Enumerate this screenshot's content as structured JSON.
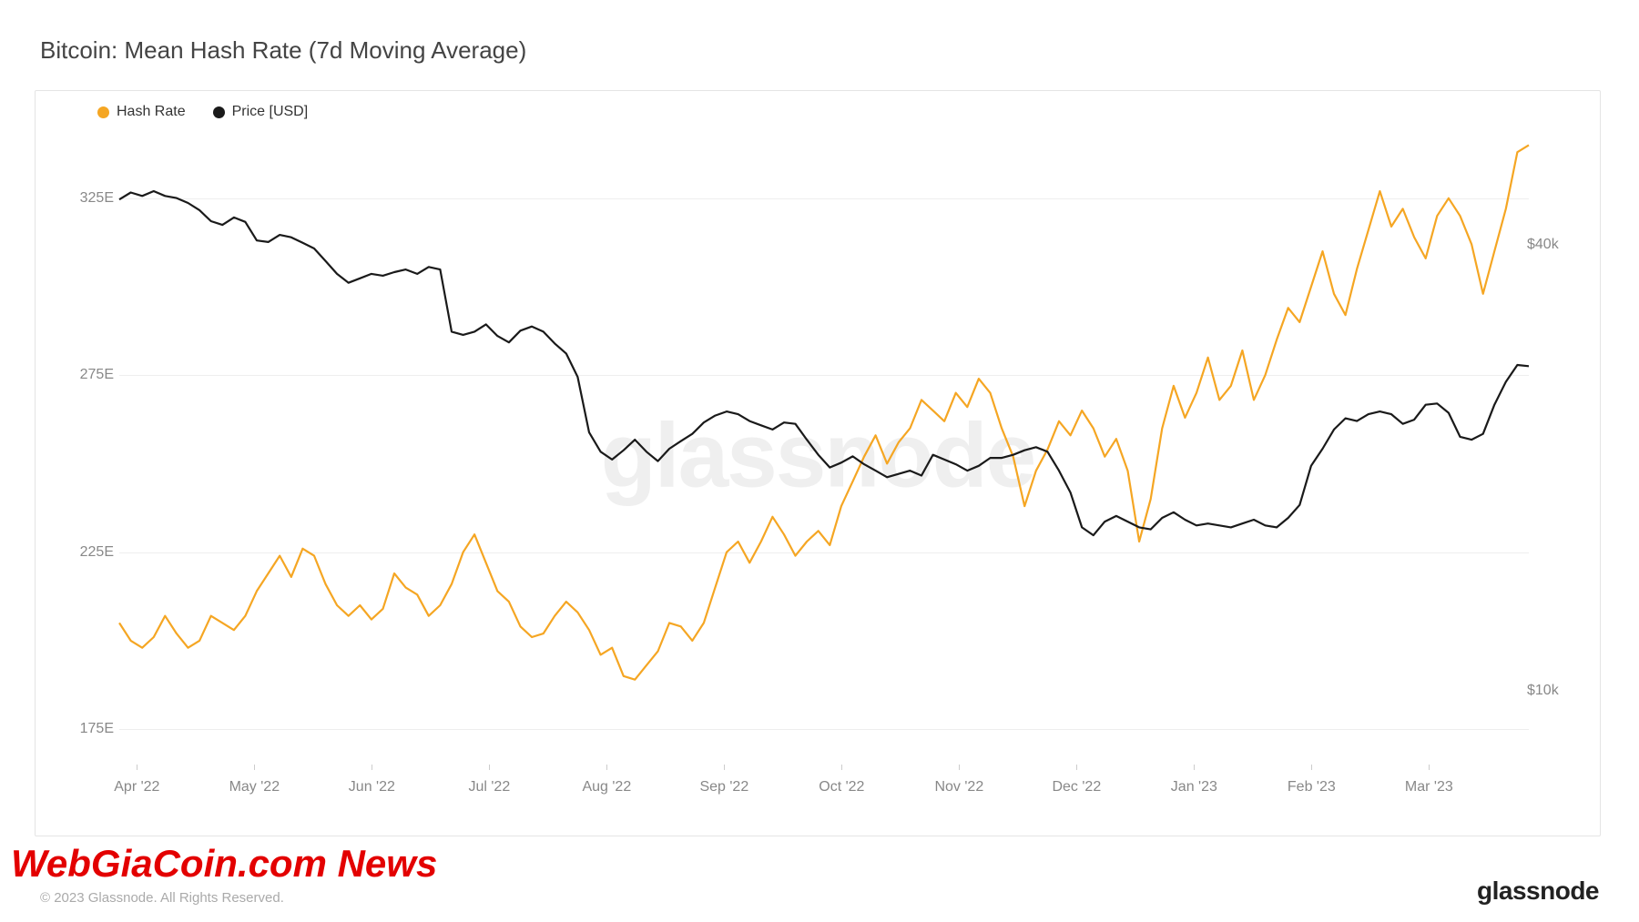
{
  "title": "Bitcoin: Mean Hash Rate (7d Moving Average)",
  "watermark": "glassnode",
  "brand": "glassnode",
  "copyright": "© 2023 Glassnode. All Rights Reserved.",
  "overlay": "WebGiaCoin.com News",
  "legend": {
    "series1": {
      "label": "Hash Rate",
      "color": "#f5a623"
    },
    "series2": {
      "label": "Price [USD]",
      "color": "#1a1a1a"
    }
  },
  "chart": {
    "background_color": "#ffffff",
    "grid_color": "#eeeeee",
    "axis_font_color": "#888888",
    "axis_fontsize": 16,
    "line_width": 2.2,
    "x_labels": [
      "Apr '22",
      "May '22",
      "Jun '22",
      "Jul '22",
      "Aug '22",
      "Sep '22",
      "Oct '22",
      "Nov '22",
      "Dec '22",
      "Jan '23",
      "Feb '23",
      "Mar '23"
    ],
    "y_left": {
      "min": 165,
      "max": 345,
      "ticks": [
        175,
        225,
        275,
        325
      ],
      "tick_format": "{v}E"
    },
    "y_right_log": {
      "min_log": 3.9,
      "max_log": 4.76,
      "ticks": [
        10000,
        40000
      ],
      "tick_labels": [
        "$10k",
        "$40k"
      ]
    },
    "hash_rate": [
      205,
      200,
      198,
      201,
      207,
      202,
      198,
      200,
      207,
      205,
      203,
      207,
      214,
      219,
      224,
      218,
      226,
      224,
      216,
      210,
      207,
      210,
      206,
      209,
      219,
      215,
      213,
      207,
      210,
      216,
      225,
      230,
      222,
      214,
      211,
      204,
      201,
      202,
      207,
      211,
      208,
      203,
      196,
      198,
      190,
      189,
      193,
      197,
      205,
      204,
      200,
      205,
      215,
      225,
      228,
      222,
      228,
      235,
      230,
      224,
      228,
      231,
      227,
      238,
      245,
      252,
      258,
      250,
      256,
      260,
      268,
      265,
      262,
      270,
      266,
      274,
      270,
      260,
      252,
      238,
      248,
      254,
      262,
      258,
      265,
      260,
      252,
      257,
      248,
      228,
      240,
      260,
      272,
      263,
      270,
      280,
      268,
      272,
      282,
      268,
      275,
      285,
      294,
      290,
      300,
      310,
      298,
      292,
      305,
      316,
      327,
      317,
      322,
      314,
      308,
      320,
      325,
      320,
      312,
      298,
      310,
      322,
      338,
      340
    ],
    "price_usd": [
      46000,
      47000,
      46500,
      47200,
      46500,
      46200,
      45500,
      44500,
      43000,
      42500,
      43500,
      42900,
      40500,
      40300,
      41200,
      40900,
      40200,
      39500,
      38000,
      36500,
      35500,
      36000,
      36500,
      36300,
      36700,
      37000,
      36500,
      37300,
      37000,
      30500,
      30200,
      30500,
      31200,
      30100,
      29500,
      30600,
      31000,
      30500,
      29400,
      28500,
      26500,
      22300,
      21000,
      20500,
      21100,
      21800,
      21000,
      20400,
      21200,
      21700,
      22200,
      23000,
      23500,
      23800,
      23600,
      23100,
      22800,
      22500,
      23000,
      22900,
      21800,
      20800,
      20000,
      20300,
      20700,
      20200,
      19800,
      19400,
      19600,
      19800,
      19500,
      20800,
      20500,
      20200,
      19800,
      20100,
      20600,
      20600,
      20800,
      21100,
      21300,
      21000,
      19800,
      18500,
      16600,
      16200,
      16900,
      17200,
      16900,
      16600,
      16500,
      17100,
      17400,
      17000,
      16700,
      16800,
      16700,
      16600,
      16800,
      17000,
      16700,
      16600,
      17100,
      17800,
      20100,
      21200,
      22500,
      23300,
      23100,
      23600,
      23800,
      23600,
      22900,
      23200,
      24300,
      24400,
      23700,
      22000,
      21800,
      22200,
      24300,
      26100,
      27500,
      27400
    ],
    "n_points": 124
  }
}
